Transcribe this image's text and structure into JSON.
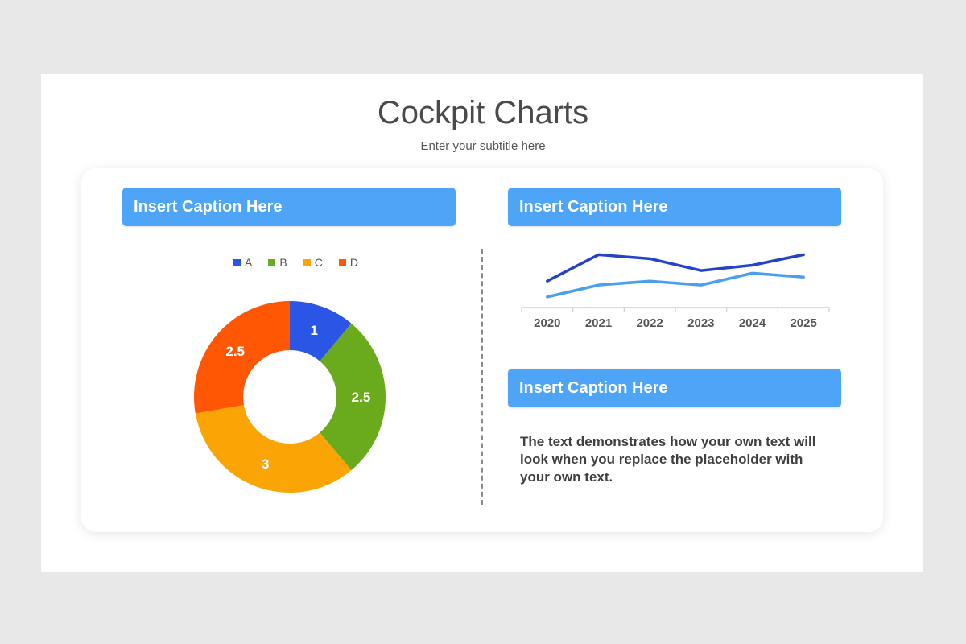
{
  "header": {
    "title": "Cockpit Charts",
    "subtitle": "Enter your subtitle here"
  },
  "captions": {
    "left": "Insert Caption Here",
    "right_top": "Insert Caption Here",
    "right_bottom": "Insert Caption Here"
  },
  "colors": {
    "caption_bg": "#4ea5f8",
    "A": "#2a55e5",
    "B": "#6aab1e",
    "C": "#fba405",
    "D": "#ff5704",
    "line_dark": "#2443c8",
    "line_light": "#4a9ef0"
  },
  "body_text": "The text demonstrates how your own text will look when you replace the placeholder with your own text.",
  "chart_data": [
    {
      "type": "pie",
      "donut": true,
      "categories": [
        "A",
        "B",
        "C",
        "D"
      ],
      "values": [
        1,
        2.5,
        3,
        2.5
      ],
      "data_labels": [
        "1",
        "2.5",
        "3",
        "2.5"
      ],
      "colors": [
        "#2a55e5",
        "#6aab1e",
        "#fba405",
        "#ff5704"
      ],
      "legend": "top"
    },
    {
      "type": "line",
      "x": [
        "2020",
        "2021",
        "2022",
        "2023",
        "2024",
        "2025"
      ],
      "series": [
        {
          "values": [
            4.0,
            6.0,
            5.7,
            4.8,
            5.2,
            6.0
          ],
          "color": "#2443c8"
        },
        {
          "values": [
            2.8,
            3.7,
            4.0,
            3.7,
            4.6,
            4.3
          ],
          "color": "#4a9ef0"
        }
      ],
      "ylim": [
        2,
        7
      ],
      "grid": false,
      "legend": "none"
    }
  ]
}
